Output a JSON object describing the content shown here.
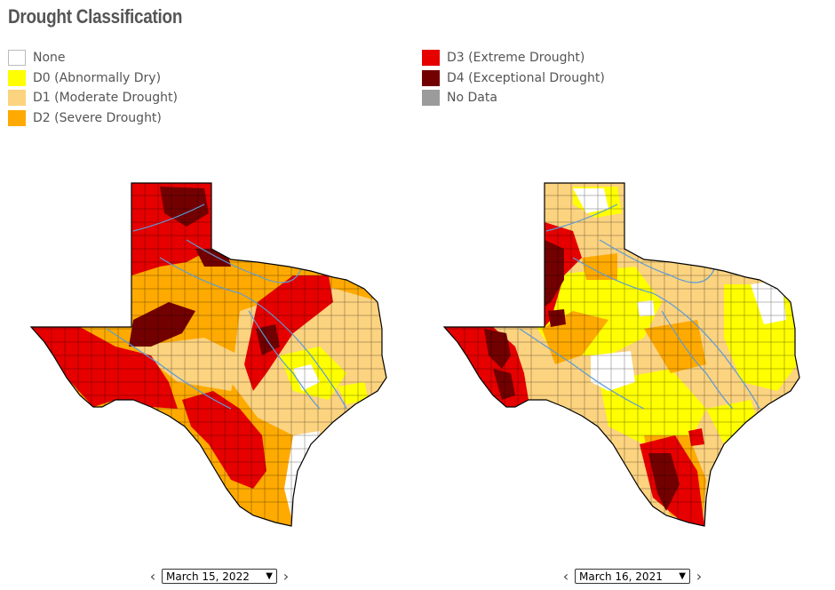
{
  "title": "Drought Classification",
  "legend": {
    "left": [
      {
        "label": "None",
        "color": "#ffffff"
      },
      {
        "label": "D0 (Abnormally Dry)",
        "color": "#ffff00"
      },
      {
        "label": "D1 (Moderate Drought)",
        "color": "#fcd37f"
      },
      {
        "label": "D2 (Severe Drought)",
        "color": "#ffaa00"
      }
    ],
    "right": [
      {
        "label": "D3 (Extreme Drought)",
        "color": "#e60000"
      },
      {
        "label": "D4 (Exceptional Drought)",
        "color": "#730000"
      },
      {
        "label": "No Data",
        "color": "#9b9b9b"
      }
    ]
  },
  "maps": [
    {
      "date": "March 15, 2022",
      "prev_icon": "chevron-left-icon",
      "next_icon": "chevron-right-icon"
    },
    {
      "date": "March 16, 2021",
      "prev_icon": "chevron-left-icon",
      "next_icon": "chevron-right-icon"
    }
  ],
  "river_color": "#5b9bd5"
}
